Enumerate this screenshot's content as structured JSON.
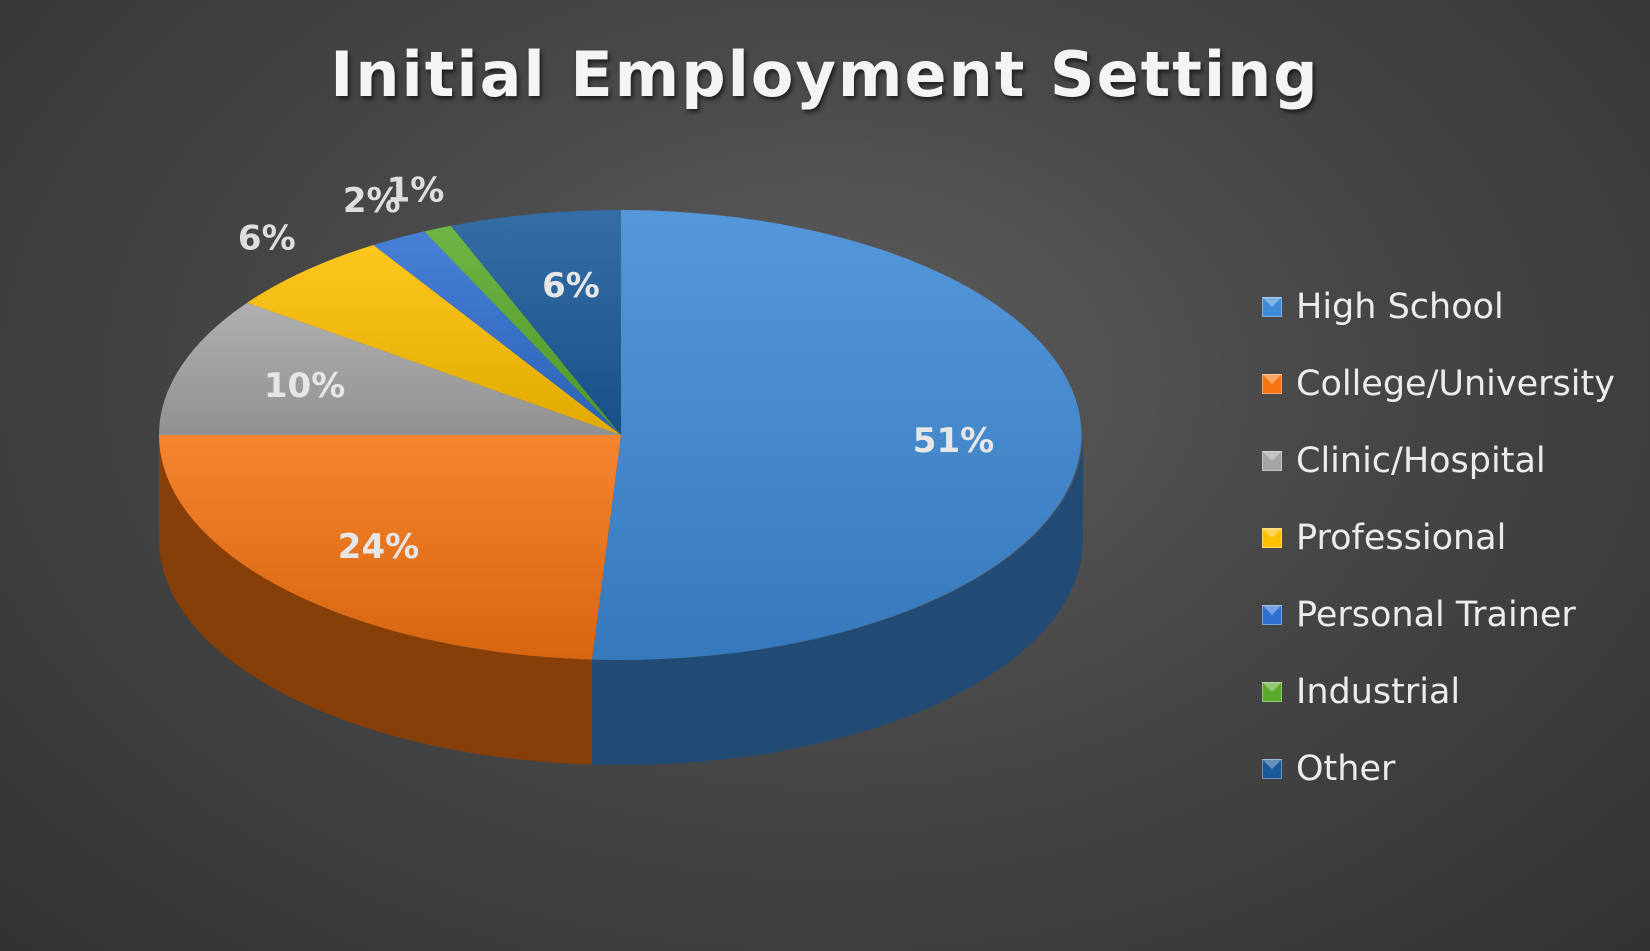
{
  "chart_data": {
    "type": "pie",
    "title": "Initial Employment Setting",
    "categories": [
      "High School",
      "College/University",
      "Clinic/Hospital",
      "Professional",
      "Personal Trainer",
      "Industrial",
      "Other"
    ],
    "values": [
      51,
      24,
      10,
      6,
      2,
      1,
      6
    ],
    "data_labels": [
      "51%",
      "24%",
      "10%",
      "6%",
      "2%",
      "1%",
      "6%"
    ],
    "colors": [
      "#3d8ad6",
      "#f57311",
      "#a5a5a5",
      "#ffc000",
      "#2f6fd0",
      "#5aab2d",
      "#1a5a9a"
    ],
    "legend_position": "right",
    "style": "3d"
  }
}
